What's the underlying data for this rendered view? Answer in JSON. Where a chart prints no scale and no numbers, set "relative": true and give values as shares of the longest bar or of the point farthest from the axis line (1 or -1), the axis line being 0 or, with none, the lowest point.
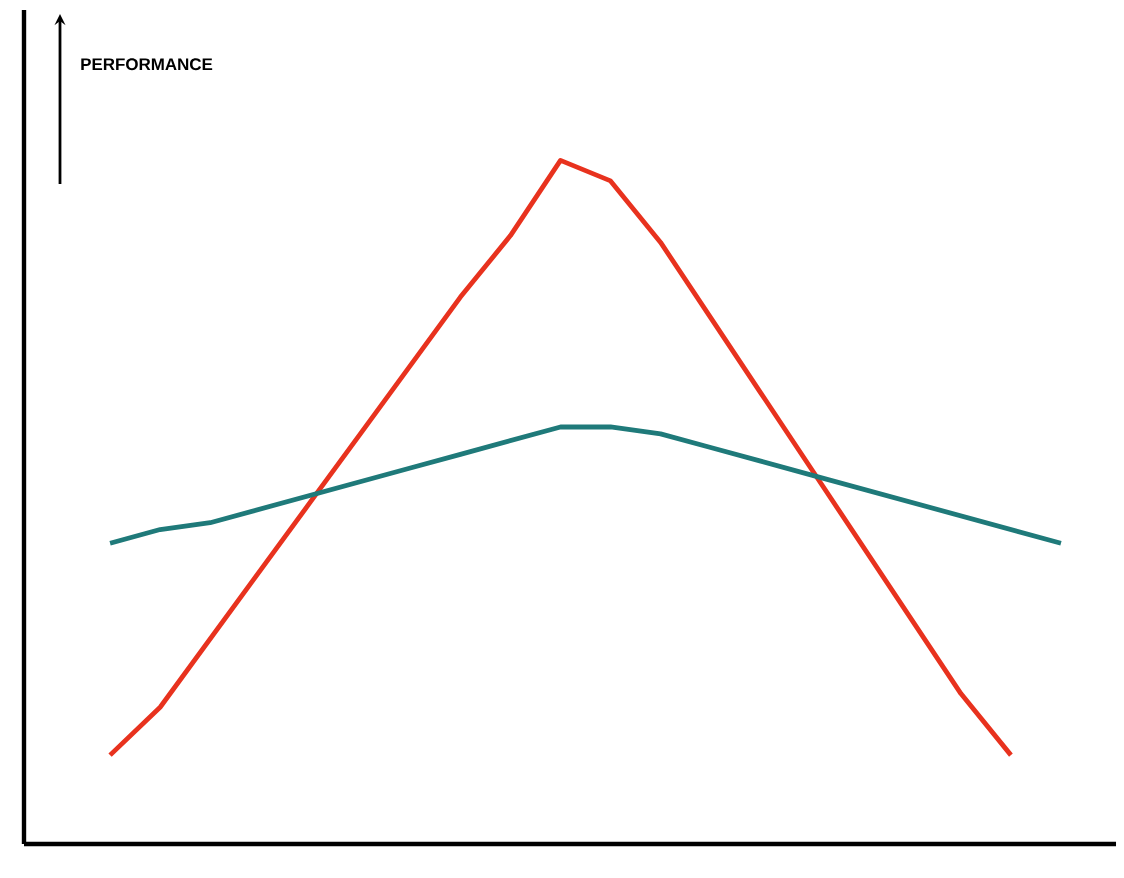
{
  "chart_data": {
    "type": "line",
    "relative": true,
    "annotations": [
      "PERFORMANCE"
    ],
    "categories": [
      null,
      null,
      null,
      null,
      null,
      null,
      null,
      null,
      null,
      null,
      null,
      null,
      null,
      null,
      null,
      null,
      null,
      null,
      null,
      null
    ],
    "series": [
      {
        "color": "#e8321e",
        "values": [
          0.13,
          0.2,
          0.3,
          0.4,
          0.5,
          0.6,
          0.7,
          0.8,
          0.89,
          1.0,
          0.97,
          0.88,
          0.77,
          0.66,
          0.55,
          0.44,
          0.33,
          0.22,
          0.13,
          null
        ]
      },
      {
        "color": "#1f7a7a",
        "values": [
          0.44,
          0.46,
          0.47,
          0.49,
          0.51,
          0.53,
          0.55,
          0.57,
          0.59,
          0.61,
          0.61,
          0.6,
          0.58,
          0.56,
          0.54,
          0.52,
          0.5,
          0.48,
          0.46,
          0.44
        ]
      }
    ]
  }
}
